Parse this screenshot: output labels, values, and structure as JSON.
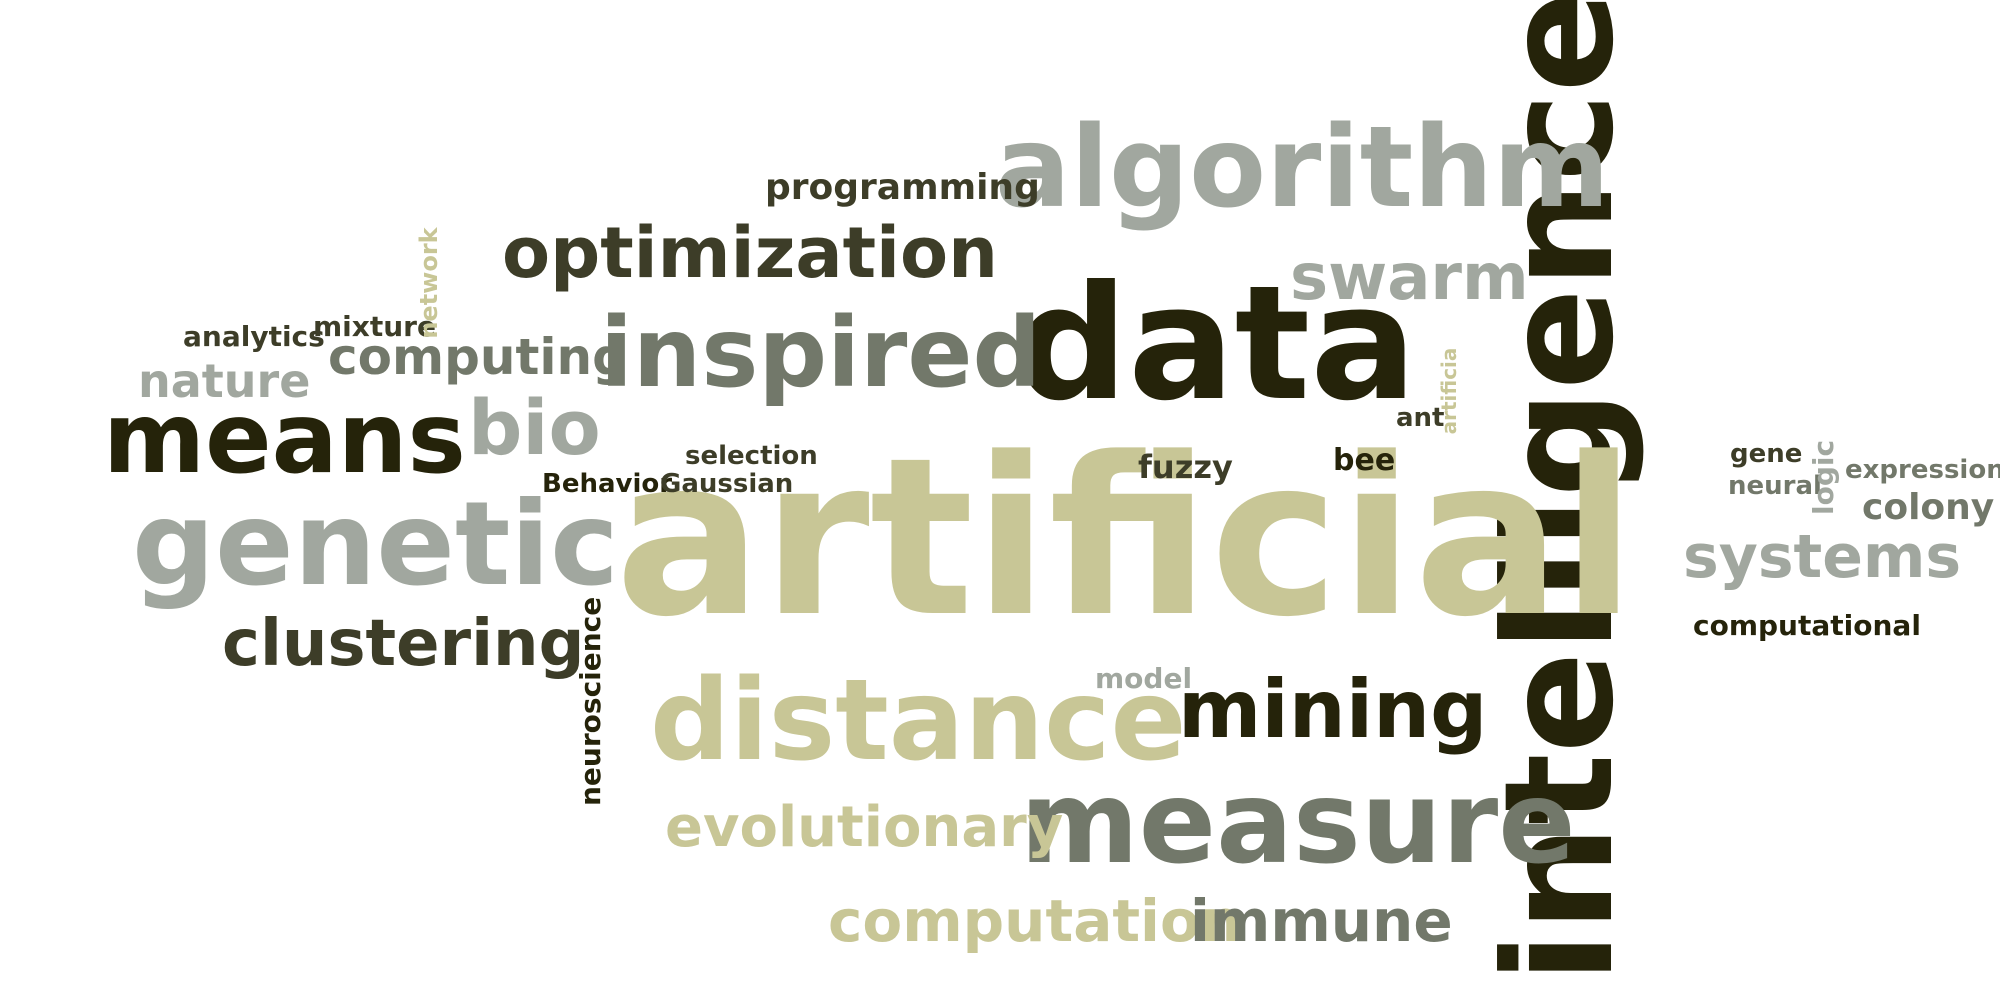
{
  "palette": {
    "dark": "#25230a",
    "darkolive": "#3d3d28",
    "sage": "#72786a",
    "gray": "#a1a79f",
    "khaki": "#c8c696"
  },
  "words": [
    "intelligence",
    "artificial",
    "data",
    "algorithm",
    "measure",
    "distance",
    "genetic",
    "means",
    "inspired",
    "mining",
    "optimization",
    "swarm",
    "clustering",
    "evolutionary",
    "computation",
    "immune",
    "systems",
    "bio",
    "computing",
    "nature",
    "programming",
    "neuroscience",
    "analytics",
    "mixture",
    "network",
    "selection",
    "Behavior",
    "Gaussian",
    "fuzzy",
    "bee",
    "ant",
    "artificia",
    "model",
    "gene",
    "neural",
    "logic",
    "expression",
    "colony",
    "computational"
  ]
}
